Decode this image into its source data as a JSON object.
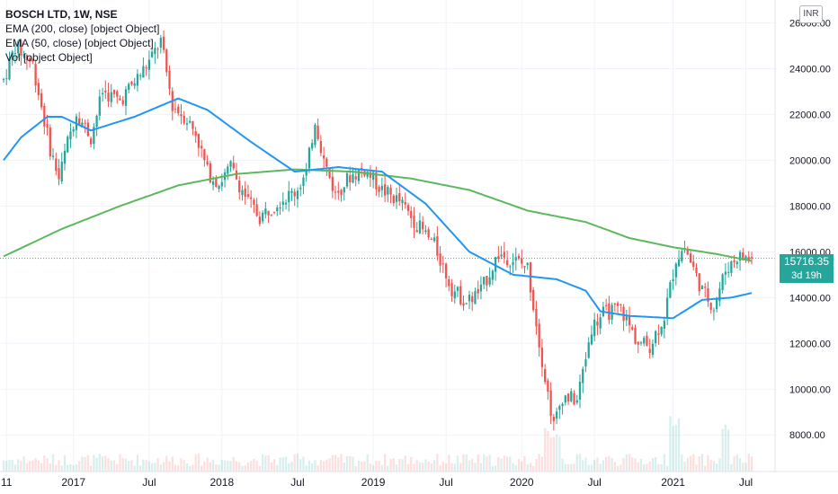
{
  "legend": {
    "title": "BOSCH LTD, 1W, NSE",
    "ema200": "EMA (200, close) [object Object]",
    "ema50": "EMA (50, close) [object Object]",
    "vol": "Vol [object Object]"
  },
  "currency_button": "INR",
  "last_price": "15716.35",
  "countdown": "3d 19h",
  "colors": {
    "up": "#26a69a",
    "down": "#ef5350",
    "ema200": "#5cb85c",
    "ema50": "#2196f3",
    "grid": "#f0f3fa"
  },
  "chart_data": {
    "type": "candlestick",
    "y_range": [
      6400,
      27000
    ],
    "y_ticks": [
      8000,
      10000,
      12000,
      14000,
      16000,
      18000,
      20000,
      22000,
      24000,
      26000
    ],
    "y_tick_labels": [
      "8000.00",
      "10000.00",
      "12000.00",
      "14000.00",
      "16000.00",
      "18000.00",
      "20000.00",
      "22000.00",
      "24000.00",
      "26000.00"
    ],
    "x_labels": [
      {
        "label": "11",
        "week": 1
      },
      {
        "label": "2017",
        "week": 24
      },
      {
        "label": "Jul",
        "week": 50
      },
      {
        "label": "2018",
        "week": 75
      },
      {
        "label": "Jul",
        "week": 101
      },
      {
        "label": "2019",
        "week": 127
      },
      {
        "label": "Jul",
        "week": 152
      },
      {
        "label": "2020",
        "week": 178
      },
      {
        "label": "Jul",
        "week": 203
      },
      {
        "label": "2021",
        "week": 230
      },
      {
        "label": "Jul",
        "week": 255
      }
    ],
    "weeks_total": 258,
    "price_path": [
      [
        0,
        23500
      ],
      [
        4,
        25000
      ],
      [
        10,
        24200
      ],
      [
        16,
        20500
      ],
      [
        19,
        19200
      ],
      [
        22,
        20800
      ],
      [
        25,
        22100
      ],
      [
        30,
        21000
      ],
      [
        34,
        23000
      ],
      [
        40,
        22600
      ],
      [
        46,
        23600
      ],
      [
        50,
        24300
      ],
      [
        54,
        25200
      ],
      [
        58,
        22400
      ],
      [
        63,
        21800
      ],
      [
        66,
        21200
      ],
      [
        70,
        19500
      ],
      [
        74,
        19000
      ],
      [
        78,
        19700
      ],
      [
        84,
        18200
      ],
      [
        88,
        17500
      ],
      [
        94,
        18200
      ],
      [
        100,
        18600
      ],
      [
        104,
        19400
      ],
      [
        107,
        21800
      ],
      [
        110,
        20000
      ],
      [
        114,
        18500
      ],
      [
        119,
        19300
      ],
      [
        124,
        19600
      ],
      [
        130,
        18700
      ],
      [
        136,
        18200
      ],
      [
        142,
        17200
      ],
      [
        148,
        16300
      ],
      [
        154,
        14400
      ],
      [
        159,
        13800
      ],
      [
        164,
        14300
      ],
      [
        170,
        15900
      ],
      [
        176,
        15600
      ],
      [
        180,
        15300
      ],
      [
        186,
        10500
      ],
      [
        189,
        8400
      ],
      [
        192,
        9700
      ],
      [
        197,
        9500
      ],
      [
        202,
        12700
      ],
      [
        206,
        13300
      ],
      [
        212,
        13500
      ],
      [
        218,
        12000
      ],
      [
        222,
        11900
      ],
      [
        227,
        13200
      ],
      [
        231,
        15700
      ],
      [
        234,
        16200
      ],
      [
        240,
        14300
      ],
      [
        244,
        13600
      ],
      [
        248,
        15200
      ],
      [
        252,
        15800
      ],
      [
        257,
        15716
      ]
    ],
    "ema200": [
      [
        0,
        15800
      ],
      [
        20,
        17000
      ],
      [
        40,
        18000
      ],
      [
        60,
        18900
      ],
      [
        80,
        19400
      ],
      [
        100,
        19600
      ],
      [
        120,
        19500
      ],
      [
        140,
        19200
      ],
      [
        160,
        18700
      ],
      [
        180,
        17800
      ],
      [
        200,
        17300
      ],
      [
        215,
        16600
      ],
      [
        230,
        16200
      ],
      [
        245,
        15900
      ],
      [
        257,
        15600
      ]
    ],
    "ema50": [
      [
        0,
        20000
      ],
      [
        6,
        21000
      ],
      [
        15,
        21900
      ],
      [
        20,
        21900
      ],
      [
        30,
        21300
      ],
      [
        45,
        21900
      ],
      [
        60,
        22700
      ],
      [
        70,
        22200
      ],
      [
        85,
        20800
      ],
      [
        100,
        19500
      ],
      [
        115,
        19700
      ],
      [
        130,
        19500
      ],
      [
        145,
        18100
      ],
      [
        160,
        16000
      ],
      [
        175,
        15000
      ],
      [
        190,
        14800
      ],
      [
        200,
        14300
      ],
      [
        205,
        13400
      ],
      [
        215,
        13200
      ],
      [
        230,
        13100
      ],
      [
        240,
        13900
      ],
      [
        250,
        14000
      ],
      [
        257,
        14200
      ]
    ],
    "last_close": 15716.35
  }
}
